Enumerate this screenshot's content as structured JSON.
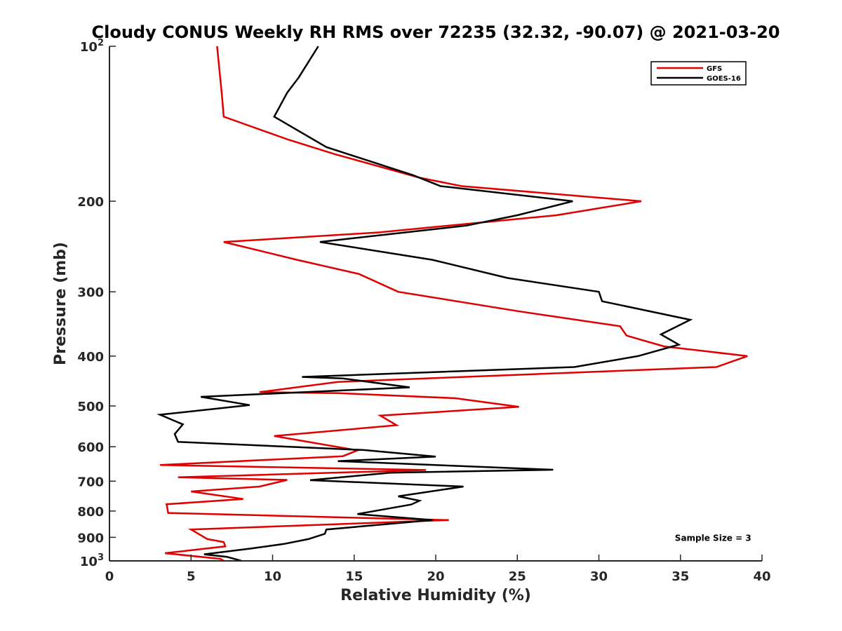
{
  "chart_data": {
    "type": "line",
    "title": "Cloudy CONUS Weekly RH RMS over 72235 (32.32, -90.07) @ 2021-03-20",
    "xlabel": "Relative Humidity (%)",
    "ylabel": "Pressure (mb)",
    "xlim": [
      0,
      40
    ],
    "ylim": [
      100,
      1000
    ],
    "yscale": "log",
    "y_reversed": true,
    "grid": false,
    "legend_position": "top-right",
    "x_ticks": [
      0,
      5,
      10,
      15,
      20,
      25,
      30,
      35,
      40
    ],
    "x_tick_labels": [
      "0",
      "5",
      "10",
      "15",
      "20",
      "25",
      "30",
      "35",
      "40"
    ],
    "y_ticks": [
      {
        "value": 100,
        "base": "10",
        "exp": "2"
      },
      {
        "value": 200,
        "label": "200"
      },
      {
        "value": 300,
        "label": "300"
      },
      {
        "value": 400,
        "label": "400"
      },
      {
        "value": 500,
        "label": "500"
      },
      {
        "value": 600,
        "label": "600"
      },
      {
        "value": 700,
        "label": "700"
      },
      {
        "value": 800,
        "label": "800"
      },
      {
        "value": 900,
        "label": "900"
      },
      {
        "value": 1000,
        "base": "10",
        "exp": "3"
      }
    ],
    "series": [
      {
        "name": "GFS",
        "color": "#e00000",
        "points": [
          [
            6.6,
            100
          ],
          [
            6.9,
            125
          ],
          [
            7.0,
            137
          ],
          [
            11.0,
            152
          ],
          [
            13.8,
            162
          ],
          [
            19.0,
            180
          ],
          [
            21.6,
            187
          ],
          [
            32.6,
            200
          ],
          [
            27.4,
            213
          ],
          [
            16.5,
            230
          ],
          [
            7.0,
            240
          ],
          [
            11.5,
            260
          ],
          [
            15.3,
            277
          ],
          [
            17.7,
            300
          ],
          [
            25.0,
            327
          ],
          [
            31.3,
            350
          ],
          [
            31.7,
            365
          ],
          [
            34.0,
            383
          ],
          [
            39.1,
            400
          ],
          [
            37.2,
            420
          ],
          [
            14.0,
            449
          ],
          [
            9.2,
            470
          ],
          [
            14.0,
            472
          ],
          [
            21.2,
            483
          ],
          [
            25.1,
            502
          ],
          [
            16.6,
            522
          ],
          [
            17.6,
            545
          ],
          [
            10.1,
            572
          ],
          [
            15.2,
            610
          ],
          [
            14.3,
            626
          ],
          [
            3.1,
            651
          ],
          [
            19.4,
            666
          ],
          [
            4.2,
            688
          ],
          [
            10.9,
            696
          ],
          [
            9.2,
            717
          ],
          [
            5.0,
            733
          ],
          [
            8.2,
            758
          ],
          [
            3.5,
            776
          ],
          [
            3.6,
            807
          ],
          [
            20.8,
            833
          ],
          [
            5.0,
            869
          ],
          [
            6.0,
            907
          ],
          [
            7.0,
            919
          ],
          [
            7.1,
            937
          ],
          [
            3.4,
            966
          ],
          [
            6.8,
            991
          ],
          [
            7.0,
            1000
          ]
        ]
      },
      {
        "name": "GOES-16",
        "color": "#000000",
        "points": [
          [
            12.8,
            100
          ],
          [
            11.6,
            115
          ],
          [
            10.9,
            123
          ],
          [
            10.1,
            137
          ],
          [
            13.3,
            157
          ],
          [
            18.6,
            178
          ],
          [
            20.3,
            187
          ],
          [
            28.4,
            200
          ],
          [
            25.0,
            213
          ],
          [
            21.9,
            223
          ],
          [
            12.9,
            240
          ],
          [
            19.8,
            260
          ],
          [
            24.4,
            282
          ],
          [
            30.0,
            300
          ],
          [
            30.2,
            313
          ],
          [
            35.6,
            340
          ],
          [
            33.8,
            363
          ],
          [
            34.9,
            380
          ],
          [
            32.4,
            400
          ],
          [
            28.5,
            420
          ],
          [
            11.8,
            439
          ],
          [
            14.3,
            442
          ],
          [
            18.4,
            460
          ],
          [
            5.6,
            480
          ],
          [
            8.6,
            498
          ],
          [
            3.1,
            520
          ],
          [
            4.5,
            543
          ],
          [
            4.0,
            567
          ],
          [
            4.2,
            587
          ],
          [
            15.6,
            609
          ],
          [
            20.0,
            627
          ],
          [
            14.0,
            640
          ],
          [
            27.2,
            665
          ],
          [
            17.2,
            674
          ],
          [
            12.3,
            697
          ],
          [
            21.7,
            717
          ],
          [
            17.7,
            749
          ],
          [
            19.0,
            764
          ],
          [
            18.5,
            777
          ],
          [
            15.2,
            811
          ],
          [
            19.8,
            833
          ],
          [
            13.3,
            869
          ],
          [
            13.2,
            886
          ],
          [
            12.2,
            907
          ],
          [
            10.7,
            927
          ],
          [
            8.7,
            946
          ],
          [
            5.8,
            971
          ],
          [
            7.2,
            982
          ],
          [
            8.1,
            1000
          ]
        ]
      }
    ],
    "annotations": [
      {
        "text": "Sample Size = 3",
        "x": 37.0,
        "y": 900
      }
    ]
  }
}
